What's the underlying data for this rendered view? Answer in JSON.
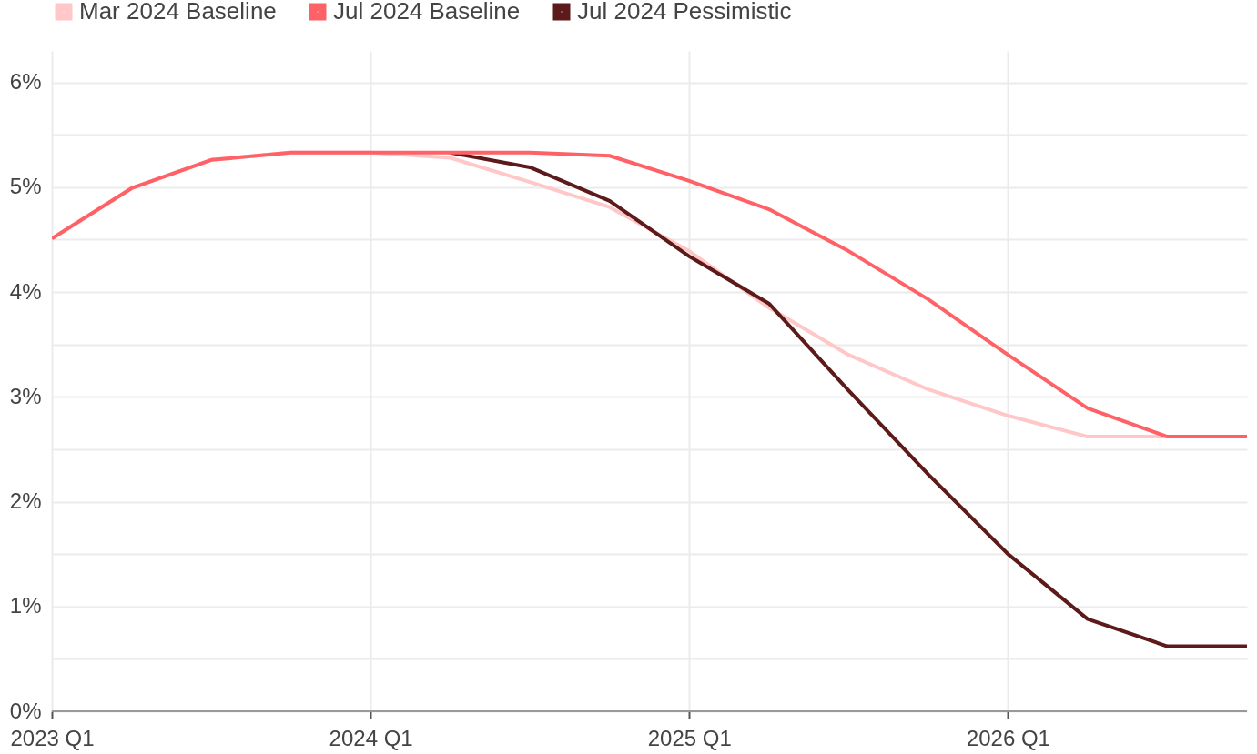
{
  "chart_data": {
    "type": "line",
    "categories": [
      "2023 Q1",
      null,
      null,
      null,
      "2024 Q1",
      null,
      null,
      null,
      "2025 Q1",
      null,
      null,
      null,
      "2026 Q1",
      null,
      null,
      null
    ],
    "series": [
      {
        "name": "Mar 2024 Baseline",
        "color": "#ffc7c7",
        "values": [
          4.51,
          4.99,
          5.26,
          5.33,
          5.33,
          5.28,
          5.05,
          4.81,
          4.39,
          3.85,
          3.4,
          3.07,
          2.82,
          2.62,
          2.62,
          null
        ]
      },
      {
        "name": "Jul 2024 Baseline",
        "color": "#ff6266",
        "values": [
          4.51,
          4.99,
          5.26,
          5.33,
          5.33,
          5.33,
          5.33,
          5.3,
          5.06,
          4.79,
          4.39,
          3.93,
          3.4,
          2.89,
          2.62,
          2.62
        ]
      },
      {
        "name": "Jul 2024 Pessimistic",
        "color": "#5c1a1a",
        "values": [
          null,
          null,
          null,
          null,
          null,
          5.33,
          5.19,
          4.87,
          4.34,
          3.89,
          3.06,
          2.26,
          1.5,
          0.88,
          0.62,
          0.62
        ]
      }
    ],
    "ylim": [
      0,
      6.3
    ],
    "yticks": [
      {
        "value": 0,
        "label": "0%"
      },
      {
        "value": 0.5,
        "label": null
      },
      {
        "value": 1,
        "label": "1%"
      },
      {
        "value": 1.5,
        "label": null
      },
      {
        "value": 2,
        "label": "2%"
      },
      {
        "value": 2.5,
        "label": null
      },
      {
        "value": 3,
        "label": "3%"
      },
      {
        "value": 3.5,
        "label": null
      },
      {
        "value": 4,
        "label": "4%"
      },
      {
        "value": 4.5,
        "label": null
      },
      {
        "value": 5,
        "label": "5%"
      },
      {
        "value": 5.5,
        "label": null
      },
      {
        "value": 6,
        "label": "6%"
      }
    ],
    "grid": true,
    "legend": "top left",
    "line_style": "solid",
    "marker": "none"
  }
}
